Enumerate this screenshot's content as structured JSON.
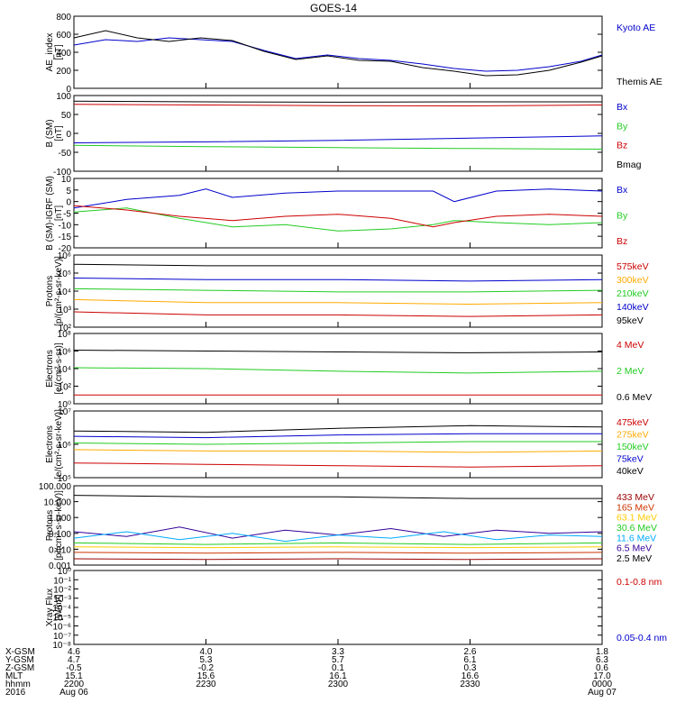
{
  "title": "GOES-14",
  "x_ticks": [
    "",
    "",
    "",
    "",
    ""
  ],
  "footer": {
    "row_labels": [
      "X-GSM",
      "Y-GSM",
      "Z-GSM",
      "MLT",
      "hhmm",
      "2016"
    ],
    "columns": [
      [
        "4.6",
        "4.7",
        "-0.5",
        "15.1",
        "2200",
        "Aug 06"
      ],
      [
        "4.0",
        "5.3",
        "-0.2",
        "15.6",
        "2230",
        ""
      ],
      [
        "3.3",
        "5.7",
        "0.1",
        "16.1",
        "2300",
        ""
      ],
      [
        "2.6",
        "6.1",
        "0.3",
        "16.6",
        "2330",
        ""
      ],
      [
        "1.8",
        "6.3",
        "0.6",
        "17.0",
        "0000",
        "Aug 07"
      ]
    ]
  },
  "chart_data": [
    {
      "type": "line",
      "ylabel": "AE_index\n[nT]",
      "yticks": [
        "800",
        "600",
        "400",
        "200",
        "0"
      ],
      "ylim": [
        0,
        800
      ],
      "legend": [
        {
          "label": "Kyoto AE",
          "color": "#0000cc"
        },
        {
          "label": "Themis AE",
          "color": "#000000"
        }
      ],
      "series": [
        {
          "name": "Kyoto AE",
          "color": "#0000cc",
          "x": [
            0,
            0.06,
            0.12,
            0.18,
            0.24,
            0.3,
            0.36,
            0.42,
            0.48,
            0.54,
            0.6,
            0.66,
            0.72,
            0.78,
            0.84,
            0.9,
            0.96,
            1.0
          ],
          "y": [
            480,
            540,
            520,
            560,
            540,
            520,
            420,
            330,
            370,
            330,
            310,
            270,
            220,
            190,
            200,
            240,
            300,
            370
          ]
        },
        {
          "name": "Themis AE",
          "color": "#000000",
          "x": [
            0,
            0.06,
            0.12,
            0.18,
            0.24,
            0.3,
            0.36,
            0.42,
            0.48,
            0.54,
            0.6,
            0.66,
            0.72,
            0.78,
            0.84,
            0.9,
            0.96,
            1.0
          ],
          "y": [
            560,
            640,
            560,
            520,
            560,
            530,
            410,
            320,
            360,
            310,
            300,
            230,
            190,
            140,
            150,
            200,
            290,
            360
          ]
        }
      ]
    },
    {
      "type": "line",
      "ylabel": "B (SM)\n[nT]",
      "yticks": [
        "100",
        "50",
        "0",
        "-50",
        "-100"
      ],
      "ylim": [
        -120,
        120
      ],
      "legend": [
        {
          "label": "Bx",
          "color": "#0000cc"
        },
        {
          "label": "By",
          "color": "#22cc22"
        },
        {
          "label": "Bz",
          "color": "#cc0000"
        },
        {
          "label": "Bmag",
          "color": "#000000"
        }
      ],
      "series": [
        {
          "name": "Bx",
          "color": "#0000cc",
          "x": [
            0,
            0.25,
            0.5,
            0.75,
            1.0
          ],
          "y": [
            -30,
            -27,
            -22,
            -15,
            -8
          ]
        },
        {
          "name": "By",
          "color": "#22cc22",
          "x": [
            0,
            0.25,
            0.5,
            0.75,
            1.0
          ],
          "y": [
            -38,
            -42,
            -45,
            -48,
            -50
          ]
        },
        {
          "name": "Bz",
          "color": "#cc0000",
          "x": [
            0,
            0.25,
            0.5,
            0.75,
            1.0
          ],
          "y": [
            92,
            90,
            88,
            87,
            90
          ]
        },
        {
          "name": "Bmag",
          "color": "#000000",
          "x": [
            0,
            0.25,
            0.5,
            0.75,
            1.0
          ],
          "y": [
            102,
            100,
            99,
            100,
            100
          ]
        }
      ]
    },
    {
      "type": "line",
      "ylabel": "B (SM)-IGRF (SM)\n[nT]",
      "yticks": [
        "10",
        "5",
        "0",
        "-5",
        "-10",
        "-15",
        "-20"
      ],
      "ylim": [
        -22,
        11
      ],
      "legend": [
        {
          "label": "Bx",
          "color": "#0000cc"
        },
        {
          "label": "By",
          "color": "#22cc22"
        },
        {
          "label": "Bz",
          "color": "#cc0000"
        }
      ],
      "series": [
        {
          "name": "Bx",
          "color": "#0000cc",
          "x": [
            0,
            0.1,
            0.2,
            0.25,
            0.3,
            0.4,
            0.5,
            0.6,
            0.68,
            0.72,
            0.8,
            0.9,
            1.0
          ],
          "y": [
            -3,
            1,
            3,
            6,
            2,
            4,
            5,
            5,
            5,
            0,
            5,
            6,
            5
          ]
        },
        {
          "name": "By",
          "color": "#22cc22",
          "x": [
            0,
            0.1,
            0.2,
            0.3,
            0.4,
            0.5,
            0.6,
            0.68,
            0.72,
            0.8,
            0.9,
            1.0
          ],
          "y": [
            -5,
            -3,
            -8,
            -12,
            -11,
            -14,
            -13,
            -11,
            -9,
            -10,
            -11,
            -10
          ]
        },
        {
          "name": "Bz",
          "color": "#cc0000",
          "x": [
            0,
            0.1,
            0.2,
            0.3,
            0.4,
            0.5,
            0.6,
            0.68,
            0.72,
            0.8,
            0.9,
            1.0
          ],
          "y": [
            -2,
            -4,
            -7,
            -9,
            -7,
            -6,
            -8,
            -12,
            -10,
            -7,
            -6,
            -7
          ]
        }
      ]
    },
    {
      "type": "line",
      "ylabel": "Protons\n[p/(cm²-s-sr-keV)]",
      "ylog": true,
      "yticks": [
        "10⁶",
        "10⁵",
        "10⁴",
        "10³",
        "10²"
      ],
      "ylim": [
        1.5,
        6.2
      ],
      "legend": [
        {
          "label": "575keV",
          "color": "#cc0000"
        },
        {
          "label": "300keV",
          "color": "#ffaa00"
        },
        {
          "label": "210keV",
          "color": "#22cc22"
        },
        {
          "label": "140keV",
          "color": "#0000cc"
        },
        {
          "label": "95keV",
          "color": "#000000"
        }
      ],
      "series": [
        {
          "name": "95keV",
          "color": "#000000",
          "x": [
            0,
            0.25,
            0.5,
            0.75,
            1.0
          ],
          "y": [
            5.6,
            5.5,
            5.5,
            5.5,
            5.5
          ]
        },
        {
          "name": "140keV",
          "color": "#0000cc",
          "x": [
            0,
            0.25,
            0.5,
            0.75,
            1.0
          ],
          "y": [
            4.7,
            4.6,
            4.6,
            4.5,
            4.6
          ]
        },
        {
          "name": "210keV",
          "color": "#22cc22",
          "x": [
            0,
            0.25,
            0.5,
            0.75,
            1.0
          ],
          "y": [
            4.0,
            3.9,
            3.8,
            3.8,
            3.9
          ]
        },
        {
          "name": "300keV",
          "color": "#ffaa00",
          "x": [
            0,
            0.25,
            0.5,
            0.75,
            1.0
          ],
          "y": [
            3.3,
            3.1,
            3.1,
            3.0,
            3.1
          ]
        },
        {
          "name": "575keV",
          "color": "#cc0000",
          "x": [
            0,
            0.25,
            0.5,
            0.75,
            1.0
          ],
          "y": [
            2.5,
            2.3,
            2.3,
            2.2,
            2.3
          ]
        }
      ]
    },
    {
      "type": "line",
      "ylabel": "Electrons\n[e/(cm²-s-sr)]",
      "ylog": true,
      "yticks": [
        "10⁸",
        "10⁶",
        "10⁴",
        "10²",
        "10⁰"
      ],
      "ylim": [
        0,
        8
      ],
      "legend": [
        {
          "label": "4 MeV",
          "color": "#cc0000"
        },
        {
          "label": "2 MeV",
          "color": "#22cc22"
        },
        {
          "label": "0.6 MeV",
          "color": "#000000"
        }
      ],
      "series": [
        {
          "name": "0.6 MeV",
          "color": "#000000",
          "x": [
            0,
            0.25,
            0.5,
            0.75,
            1.0
          ],
          "y": [
            6.1,
            6.0,
            5.9,
            5.8,
            5.9
          ]
        },
        {
          "name": "2 MeV",
          "color": "#22cc22",
          "x": [
            0,
            0.25,
            0.5,
            0.75,
            1.0
          ],
          "y": [
            4.1,
            4.0,
            3.7,
            3.5,
            3.7
          ]
        },
        {
          "name": "4 MeV",
          "color": "#cc0000",
          "x": [
            0,
            0.25,
            0.5,
            0.75,
            1.0
          ],
          "y": [
            1.0,
            1.0,
            1.0,
            1.0,
            1.0
          ]
        }
      ]
    },
    {
      "type": "line",
      "ylabel": "Electrons\n[e/(cm²-s-sr-keV)]",
      "ylog": true,
      "yticks": [
        "10⁷",
        "10⁶",
        "10⁵"
      ],
      "ylim": [
        4.5,
        7
      ],
      "legend": [
        {
          "label": "475keV",
          "color": "#cc0000"
        },
        {
          "label": "275keV",
          "color": "#ffaa00"
        },
        {
          "label": "150keV",
          "color": "#22cc22"
        },
        {
          "label": "75keV",
          "color": "#0000cc"
        },
        {
          "label": "40keV",
          "color": "#000000"
        }
      ],
      "series": [
        {
          "name": "40keV",
          "color": "#000000",
          "x": [
            0,
            0.25,
            0.5,
            0.75,
            1.0
          ],
          "y": [
            6.25,
            6.2,
            6.35,
            6.45,
            6.4
          ]
        },
        {
          "name": "75keV",
          "color": "#0000cc",
          "x": [
            0,
            0.25,
            0.5,
            0.75,
            1.0
          ],
          "y": [
            6.05,
            6.0,
            6.1,
            6.15,
            6.15
          ]
        },
        {
          "name": "150keV",
          "color": "#22cc22",
          "x": [
            0,
            0.25,
            0.5,
            0.75,
            1.0
          ],
          "y": [
            5.8,
            5.75,
            5.8,
            5.85,
            5.85
          ]
        },
        {
          "name": "275keV",
          "color": "#ffaa00",
          "x": [
            0,
            0.25,
            0.5,
            0.75,
            1.0
          ],
          "y": [
            5.55,
            5.5,
            5.5,
            5.45,
            5.5
          ]
        },
        {
          "name": "475keV",
          "color": "#cc0000",
          "x": [
            0,
            0.25,
            0.5,
            0.75,
            1.0
          ],
          "y": [
            5.05,
            5.0,
            4.95,
            4.9,
            4.95
          ]
        }
      ]
    },
    {
      "type": "line",
      "ylabel": "Protons\n[p/(cm²-s-sr-keV)]",
      "ylog": true,
      "yticks": [
        "100.000",
        "10.000",
        "1.000",
        "0.100",
        "0.010",
        "0.001"
      ],
      "ylim": [
        -3,
        2
      ],
      "legend": [
        {
          "label": "433 MeV",
          "color": "#990000"
        },
        {
          "label": "165 MeV",
          "color": "#cc3300"
        },
        {
          "label": "63.1 MeV",
          "color": "#ffcc00"
        },
        {
          "label": "30.6 MeV",
          "color": "#22cc22"
        },
        {
          "label": "11.6 MeV",
          "color": "#00aaff"
        },
        {
          "label": "6.5 MeV",
          "color": "#330099"
        },
        {
          "label": "2.5 MeV",
          "color": "#000000"
        }
      ],
      "series": [
        {
          "name": "2.5 MeV",
          "color": "#000000",
          "x": [
            0,
            0.25,
            0.5,
            0.75,
            1.0
          ],
          "y": [
            1.4,
            1.3,
            1.3,
            1.2,
            1.2
          ]
        },
        {
          "name": "6.5 MeV",
          "color": "#330099",
          "x": [
            0,
            0.1,
            0.2,
            0.3,
            0.4,
            0.5,
            0.6,
            0.7,
            0.8,
            0.9,
            1.0
          ],
          "y": [
            -0.9,
            -1.2,
            -0.6,
            -1.3,
            -0.8,
            -1.1,
            -0.7,
            -1.2,
            -0.8,
            -1.0,
            -0.9
          ]
        },
        {
          "name": "11.6 MeV",
          "color": "#00aaff",
          "x": [
            0,
            0.1,
            0.2,
            0.3,
            0.4,
            0.5,
            0.6,
            0.7,
            0.8,
            0.9,
            1.0
          ],
          "y": [
            -1.3,
            -0.9,
            -1.4,
            -1.0,
            -1.5,
            -1.1,
            -1.3,
            -0.9,
            -1.4,
            -1.1,
            -1.2
          ]
        },
        {
          "name": "30.6 MeV",
          "color": "#22cc22",
          "x": [
            0,
            0.25,
            0.5,
            0.75,
            1.0
          ],
          "y": [
            -1.6,
            -1.7,
            -1.6,
            -1.7,
            -1.6
          ]
        },
        {
          "name": "63.1 MeV",
          "color": "#ffcc00",
          "x": [
            0,
            0.25,
            0.5,
            0.75,
            1.0
          ],
          "y": [
            -1.85,
            -1.9,
            -1.85,
            -1.9,
            -1.85
          ]
        },
        {
          "name": "165 MeV",
          "color": "#cc3300",
          "x": [
            0,
            0.25,
            0.5,
            0.75,
            1.0
          ],
          "y": [
            -2.2,
            -2.25,
            -2.2,
            -2.25,
            -2.2
          ]
        },
        {
          "name": "433 MeV",
          "color": "#990000",
          "x": [
            0,
            0.25,
            0.5,
            0.75,
            1.0
          ],
          "y": [
            -2.6,
            -2.65,
            -2.6,
            -2.65,
            -2.6
          ]
        }
      ]
    },
    {
      "type": "line",
      "ylabel": "Xray Flux\n[W/m²]",
      "ylog": true,
      "yticks": [
        "10⁰",
        "10⁻¹",
        "10⁻²",
        "10⁻³",
        "10⁻⁴",
        "10⁻⁵",
        "10⁻⁶",
        "10⁻⁷",
        "10⁻⁸"
      ],
      "ylim": [
        -8,
        0
      ],
      "legend": [
        {
          "label": "0.1-0.8 nm",
          "color": "#cc0000"
        },
        {
          "label": "0.05-0.4 nm",
          "color": "#0000cc"
        }
      ],
      "series": []
    }
  ]
}
